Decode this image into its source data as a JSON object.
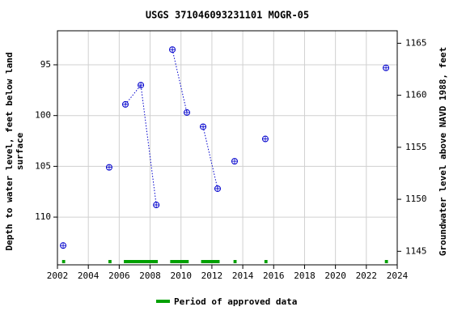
{
  "chart_data": {
    "type": "scatter",
    "title": "USGS 371046093231101 MOGR-05",
    "ylabel": [
      "Depth to water level, feet below land",
      "surface"
    ],
    "y2label": "Groundwater level above NAVD 1988, feet",
    "xlim": [
      2002,
      2024
    ],
    "xticks": [
      2002,
      2004,
      2006,
      2008,
      2010,
      2012,
      2014,
      2016,
      2018,
      2020,
      2022,
      2024
    ],
    "ylim": [
      91.65,
      114.7
    ],
    "yticks": [
      95,
      100,
      105,
      110
    ],
    "y_inverted": true,
    "y2lim": [
      1143.7,
      1166.2
    ],
    "y2ticks": [
      1145,
      1150,
      1155,
      1160,
      1165
    ],
    "grid": true,
    "series": [
      {
        "name": "Depth to water level",
        "color": "#0000cc",
        "x": [
          2002.37,
          null,
          2005.35,
          null,
          2006.4,
          2007.4,
          2008.4,
          null,
          2009.44,
          2010.38,
          null,
          2011.43,
          2012.37,
          null,
          2013.47,
          null,
          2015.46,
          null,
          2023.27
        ],
        "values": [
          112.8,
          null,
          105.1,
          null,
          98.9,
          97.0,
          108.8,
          null,
          93.5,
          99.7,
          null,
          101.1,
          107.2,
          null,
          104.5,
          null,
          102.3,
          null,
          95.3
        ]
      }
    ],
    "periods": {
      "name": "Period of approved data",
      "color": "#00a000",
      "ranges": [
        [
          2002.3,
          2002.5
        ],
        [
          2005.3,
          2005.5
        ],
        [
          2006.3,
          2008.5
        ],
        [
          2009.3,
          2010.5
        ],
        [
          2011.3,
          2012.5
        ],
        [
          2013.4,
          2013.6
        ],
        [
          2015.4,
          2015.6
        ],
        [
          2023.2,
          2023.4
        ]
      ]
    }
  }
}
